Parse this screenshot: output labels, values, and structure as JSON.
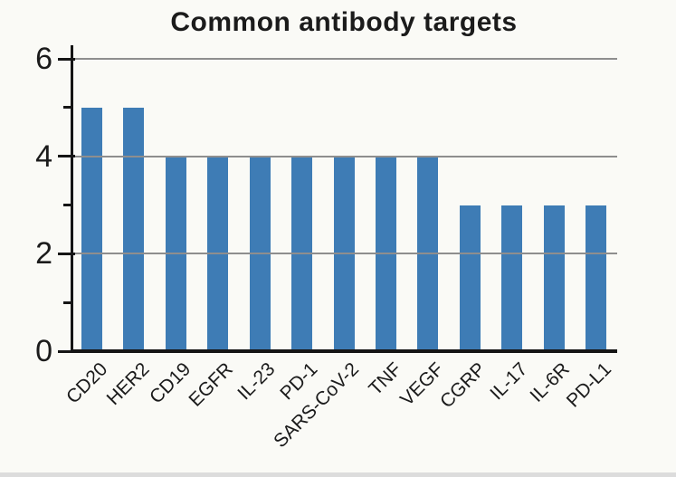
{
  "figure": {
    "background": "#fafaf6",
    "text_color": "#1b1b1b",
    "footer_strip_color": "#dcdcdc"
  },
  "chart_data": {
    "type": "bar",
    "title": "Common antibody targets",
    "categories": [
      "CD20",
      "HER2",
      "CD19",
      "EGFR",
      "IL-23",
      "PD-1",
      "SARS-CoV-2",
      "TNF",
      "VEGF",
      "CGRP",
      "IL-17",
      "IL-6R",
      "PD-L1"
    ],
    "values": [
      5,
      5,
      4,
      4,
      4,
      4,
      4,
      4,
      4,
      3,
      3,
      3,
      3
    ],
    "xlabel": "",
    "ylabel": "",
    "ylim": [
      0,
      6.3
    ],
    "yticks_major": [
      0,
      2,
      4,
      6
    ],
    "yticks_minor": [
      1,
      3,
      5
    ],
    "xtick_label_rotation_deg": 45,
    "grid": "horizontal-at-major-ticks",
    "legend": "none",
    "bar_color": "#3e7cb5",
    "grid_color": "#8e8e8e",
    "axis_color": "#151515"
  }
}
